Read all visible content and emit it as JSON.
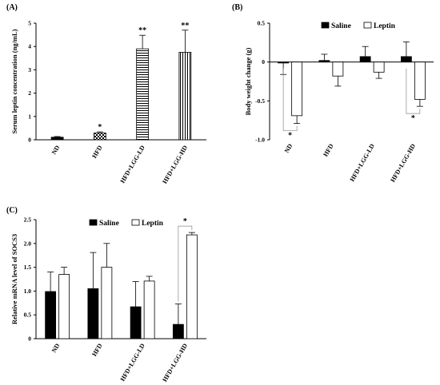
{
  "panel_labels": {
    "A": "(A)",
    "B": "(B)",
    "C": "(C)"
  },
  "chart_data": [
    {
      "id": "A",
      "type": "bar",
      "ylabel": "Serum leptin concentration (ng/mL)",
      "ylim": [
        0,
        5
      ],
      "yticks": [
        0,
        1,
        2,
        3,
        4,
        5
      ],
      "categories": [
        "ND",
        "HFD",
        "HFD+LGG-LD",
        "HFD+LGG-HD"
      ],
      "series": [
        {
          "values": [
            0.11,
            0.29,
            3.9,
            3.75
          ],
          "errors": [
            0.03,
            0.05,
            0.58,
            0.95
          ]
        }
      ],
      "fills": [
        "black",
        "checker",
        "hstripe",
        "vstripe"
      ],
      "annotations": [
        "",
        "*",
        "**",
        "**"
      ]
    },
    {
      "id": "B",
      "type": "bar",
      "ylabel": "Body weight change (g)",
      "ylim": [
        -1.0,
        0.5
      ],
      "yticks": [
        -1.0,
        -0.5,
        0,
        0.5
      ],
      "ytick_labels": [
        "-1.0",
        "-0.5",
        "0",
        "0.5"
      ],
      "categories": [
        "ND",
        "HFD",
        "HFD+LGG-LD",
        "HFD+LGG-HD"
      ],
      "series": [
        {
          "name": "Saline",
          "values": [
            -0.01,
            0.02,
            0.07,
            0.07
          ],
          "errors": [
            0.15,
            0.08,
            0.13,
            0.19
          ]
        },
        {
          "name": "Leptin",
          "values": [
            -0.69,
            -0.18,
            -0.13,
            -0.48
          ],
          "errors": [
            0.1,
            0.13,
            0.08,
            0.09
          ]
        }
      ],
      "legend": "top",
      "significance": [
        {
          "category": 0,
          "label": "*"
        },
        {
          "category": 3,
          "label": "*"
        }
      ]
    },
    {
      "id": "C",
      "type": "bar",
      "ylabel": "Relative mRNA level of SOCS3",
      "ylim": [
        0,
        2.5
      ],
      "yticks": [
        0,
        0.5,
        1.0,
        1.5,
        2.0,
        2.5
      ],
      "ytick_labels": [
        "0",
        "0.5",
        "1.0",
        "1.5",
        "2.0",
        "2.5"
      ],
      "categories": [
        "ND",
        "HFD",
        "HFD+LGG-LD",
        "HFD+LGG-HD"
      ],
      "series": [
        {
          "name": "Saline",
          "values": [
            0.99,
            1.05,
            0.67,
            0.3
          ],
          "errors": [
            0.41,
            0.76,
            0.53,
            0.43
          ]
        },
        {
          "name": "Leptin",
          "values": [
            1.35,
            1.5,
            1.21,
            2.18
          ],
          "errors": [
            0.15,
            0.5,
            0.1,
            0.05
          ]
        }
      ],
      "legend": "top",
      "significance": [
        {
          "category": 3,
          "label": "*"
        }
      ]
    }
  ]
}
